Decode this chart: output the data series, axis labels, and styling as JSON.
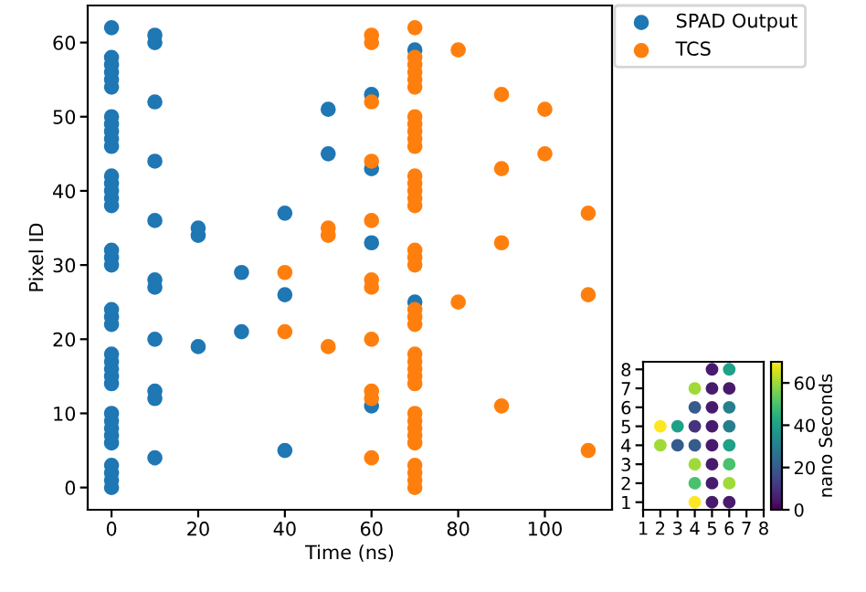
{
  "chart_data": [
    {
      "type": "scatter",
      "xlabel": "Time (ns)",
      "ylabel": "Pixel ID",
      "xlim": [
        -5.5,
        115.5
      ],
      "ylim": [
        -3,
        65
      ],
      "xticks": [
        0,
        20,
        40,
        60,
        80,
        100
      ],
      "yticks": [
        0,
        10,
        20,
        30,
        40,
        50,
        60
      ],
      "legend": "top right",
      "marker": "circle",
      "series": [
        {
          "name": "SPAD Output",
          "color": "#1f77b4",
          "x": [
            0,
            0,
            0,
            0,
            0,
            0,
            0,
            0,
            0,
            0,
            0,
            0,
            0,
            0,
            0,
            0,
            0,
            0,
            0,
            0,
            0,
            0,
            0,
            0,
            0,
            0,
            0,
            0,
            0,
            0,
            0,
            0,
            0,
            0,
            0,
            0,
            10,
            10,
            10,
            10,
            10,
            10,
            10,
            10,
            10,
            10,
            10,
            20,
            20,
            20,
            30,
            30,
            40,
            40,
            40,
            50,
            50,
            60,
            60,
            60,
            60,
            70,
            70
          ],
          "values": [
            0,
            1,
            2,
            3,
            6,
            7,
            8,
            9,
            10,
            14,
            15,
            16,
            17,
            18,
            22,
            23,
            24,
            30,
            31,
            32,
            38,
            39,
            40,
            41,
            42,
            46,
            47,
            48,
            49,
            50,
            54,
            55,
            56,
            57,
            58,
            62,
            4,
            12,
            13,
            20,
            27,
            28,
            36,
            44,
            52,
            60,
            61,
            19,
            34,
            35,
            21,
            29,
            5,
            26,
            37,
            45,
            51,
            11,
            33,
            43,
            53,
            25,
            59
          ]
        },
        {
          "name": "TCS",
          "color": "#ff7f0e",
          "x": [
            40,
            40,
            50,
            50,
            50,
            60,
            60,
            60,
            60,
            60,
            60,
            60,
            60,
            60,
            60,
            60,
            70,
            70,
            70,
            70,
            70,
            70,
            70,
            70,
            70,
            70,
            70,
            70,
            70,
            70,
            70,
            70,
            70,
            70,
            70,
            70,
            70,
            70,
            70,
            70,
            70,
            70,
            70,
            70,
            70,
            70,
            70,
            70,
            70,
            70,
            70,
            70,
            80,
            80,
            90,
            90,
            90,
            90,
            100,
            100,
            110,
            110,
            110
          ],
          "values": [
            21,
            29,
            19,
            34,
            35,
            4,
            12,
            13,
            20,
            27,
            28,
            36,
            44,
            52,
            60,
            61,
            0,
            1,
            2,
            3,
            6,
            7,
            8,
            9,
            10,
            14,
            15,
            16,
            17,
            18,
            22,
            23,
            24,
            30,
            31,
            32,
            38,
            39,
            40,
            41,
            42,
            46,
            47,
            48,
            49,
            50,
            54,
            55,
            56,
            57,
            58,
            62,
            25,
            59,
            11,
            33,
            43,
            53,
            45,
            51,
            5,
            26,
            37
          ]
        }
      ]
    },
    {
      "type": "scatter",
      "clabel": "nano Seconds",
      "clim": [
        0,
        70
      ],
      "cticks": [
        0,
        20,
        40,
        60
      ],
      "xlim": [
        1,
        8
      ],
      "ylim": [
        0.6,
        8.4
      ],
      "xticks": [
        1,
        2,
        3,
        4,
        5,
        6,
        7,
        8
      ],
      "yticks": [
        1,
        2,
        3,
        4,
        5,
        6,
        7,
        8
      ],
      "marker": "circle",
      "series": [
        {
          "x": [
            2,
            2,
            3,
            3,
            4,
            4,
            4,
            4,
            4,
            4,
            4,
            5,
            5,
            5,
            5,
            5,
            5,
            5,
            5,
            6,
            6,
            6,
            6,
            6,
            6,
            6,
            6
          ],
          "values": [
            5,
            4,
            5,
            4,
            7,
            6,
            5,
            4,
            3,
            2,
            1,
            8,
            7,
            6,
            5,
            4,
            3,
            2,
            1,
            8,
            7,
            6,
            5,
            4,
            3,
            2,
            1
          ],
          "cvalues": [
            70,
            60,
            40,
            20,
            60,
            20,
            10,
            20,
            60,
            50,
            70,
            5,
            5,
            5,
            5,
            5,
            5,
            5,
            5,
            40,
            5,
            30,
            30,
            40,
            50,
            60,
            5
          ]
        }
      ]
    }
  ]
}
